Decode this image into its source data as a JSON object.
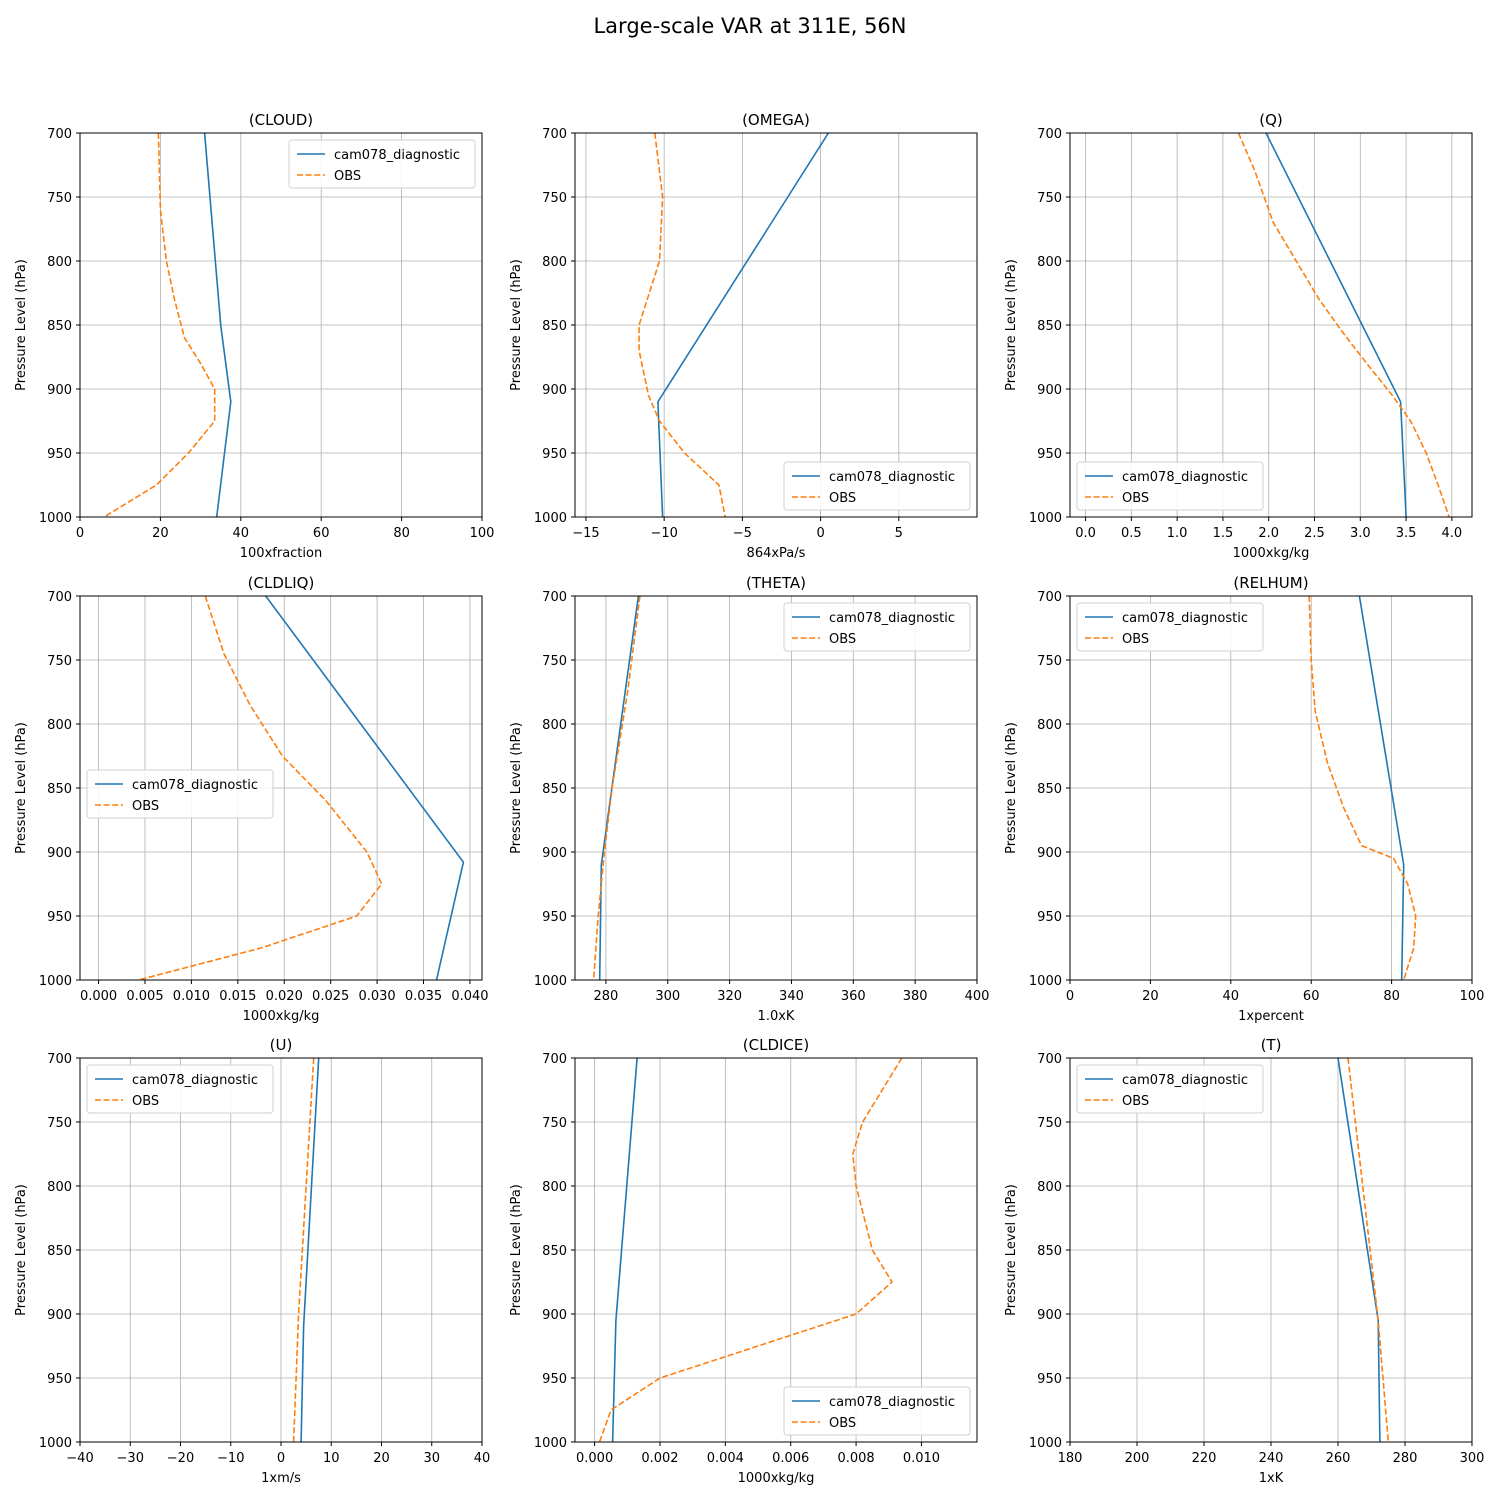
{
  "figure": {
    "title": "Large-scale VAR at 311E, 56N"
  },
  "chart_data": [
    {
      "type": "line",
      "title": "(CLOUD)",
      "xlabel": "100xfraction",
      "ylabel": "Pressure Level (hPa)",
      "xlim": [
        0,
        100
      ],
      "ylim": [
        1000,
        700
      ],
      "xticks": [
        0,
        20,
        40,
        60,
        80,
        100
      ],
      "xtick_labels": [
        "0",
        "20",
        "40",
        "60",
        "80",
        "100"
      ],
      "yticks": [
        700,
        750,
        800,
        850,
        900,
        950,
        1000
      ],
      "ytick_labels": [
        "700",
        "750",
        "800",
        "850",
        "900",
        "950",
        "1000"
      ],
      "grid": true,
      "legend_loc": "upper-right",
      "series": [
        {
          "name": "cam078_diagnostic",
          "color": "#1f77b4",
          "style": "solid",
          "points": [
            [
              31,
              700
            ],
            [
              35,
              850
            ],
            [
              37.5,
              910
            ],
            [
              34,
              1000
            ]
          ]
        },
        {
          "name": "OBS",
          "color": "#ff7f0e",
          "style": "dashed",
          "points": [
            [
              19.5,
              700
            ],
            [
              20,
              760
            ],
            [
              21.5,
              800
            ],
            [
              23.5,
              830
            ],
            [
              26,
              860
            ],
            [
              30,
              880
            ],
            [
              33.5,
              900
            ],
            [
              33.5,
              925
            ],
            [
              27,
              950
            ],
            [
              19,
              975
            ],
            [
              6,
              1000
            ]
          ]
        }
      ]
    },
    {
      "type": "line",
      "title": "(OMEGA)",
      "xlabel": "864xPa/s",
      "ylabel": "Pressure Level (hPa)",
      "xlim": [
        -15.7,
        10
      ],
      "ylim": [
        1000,
        700
      ],
      "xticks": [
        -15,
        -10,
        -5,
        0,
        5
      ],
      "xtick_labels": [
        "−15",
        "−10",
        "−5",
        "0",
        "5"
      ],
      "yticks": [
        700,
        750,
        800,
        850,
        900,
        950,
        1000
      ],
      "ytick_labels": [
        "700",
        "750",
        "800",
        "850",
        "900",
        "950",
        "1000"
      ],
      "grid": true,
      "legend_loc": "lower-right",
      "series": [
        {
          "name": "cam078_diagnostic",
          "color": "#1f77b4",
          "style": "solid",
          "points": [
            [
              0.5,
              700
            ],
            [
              -10.4,
              910
            ],
            [
              -10.1,
              1000
            ]
          ]
        },
        {
          "name": "OBS",
          "color": "#ff7f0e",
          "style": "dashed",
          "points": [
            [
              -10.6,
              700
            ],
            [
              -10.1,
              750
            ],
            [
              -10.3,
              800
            ],
            [
              -11.6,
              850
            ],
            [
              -11.6,
              870
            ],
            [
              -11.0,
              905
            ],
            [
              -10.3,
              925
            ],
            [
              -8.7,
              950
            ],
            [
              -6.5,
              975
            ],
            [
              -6.1,
              1000
            ]
          ]
        }
      ]
    },
    {
      "type": "line",
      "title": "(Q)",
      "xlabel": "1000xkg/kg",
      "ylabel": "Pressure Level (hPa)",
      "xlim": [
        -0.17,
        4.22
      ],
      "ylim": [
        1000,
        700
      ],
      "xticks": [
        0,
        0.5,
        1,
        1.5,
        2,
        2.5,
        3,
        3.5,
        4
      ],
      "xtick_labels": [
        "0.0",
        "0.5",
        "1.0",
        "1.5",
        "2.0",
        "2.5",
        "3.0",
        "3.5",
        "4.0"
      ],
      "yticks": [
        700,
        750,
        800,
        850,
        900,
        950,
        1000
      ],
      "ytick_labels": [
        "700",
        "750",
        "800",
        "850",
        "900",
        "950",
        "1000"
      ],
      "grid": true,
      "legend_loc": "lower-left",
      "series": [
        {
          "name": "cam078_diagnostic",
          "color": "#1f77b4",
          "style": "solid",
          "points": [
            [
              1.97,
              700
            ],
            [
              3.44,
              910
            ],
            [
              3.5,
              1000
            ]
          ]
        },
        {
          "name": "OBS",
          "color": "#ff7f0e",
          "style": "dashed",
          "points": [
            [
              1.67,
              700
            ],
            [
              1.85,
              730
            ],
            [
              2.05,
              770
            ],
            [
              2.3,
              800
            ],
            [
              2.55,
              830
            ],
            [
              2.8,
              855
            ],
            [
              3.07,
              880
            ],
            [
              3.35,
              905
            ],
            [
              3.55,
              925
            ],
            [
              3.72,
              950
            ],
            [
              3.85,
              975
            ],
            [
              3.97,
              1000
            ]
          ]
        }
      ]
    },
    {
      "type": "line",
      "title": "(CLDLIQ)",
      "xlabel": "1000xkg/kg",
      "ylabel": "Pressure Level (hPa)",
      "xlim": [
        -0.002,
        0.0413
      ],
      "ylim": [
        1000,
        700
      ],
      "xticks": [
        0,
        0.005,
        0.01,
        0.015,
        0.02,
        0.025,
        0.03,
        0.035,
        0.04
      ],
      "xtick_labels": [
        "0.000",
        "0.005",
        "0.010",
        "0.015",
        "0.020",
        "0.025",
        "0.030",
        "0.035",
        "0.040"
      ],
      "yticks": [
        700,
        750,
        800,
        850,
        900,
        950,
        1000
      ],
      "ytick_labels": [
        "700",
        "750",
        "800",
        "850",
        "900",
        "950",
        "1000"
      ],
      "grid": true,
      "legend_loc": "center-left",
      "series": [
        {
          "name": "cam078_diagnostic",
          "color": "#1f77b4",
          "style": "solid",
          "points": [
            [
              0.018,
              700
            ],
            [
              0.0393,
              908
            ],
            [
              0.0364,
              1000
            ]
          ]
        },
        {
          "name": "OBS",
          "color": "#ff7f0e",
          "style": "dashed",
          "points": [
            [
              0.0115,
              700
            ],
            [
              0.0135,
              745
            ],
            [
              0.0163,
              785
            ],
            [
              0.0198,
              825
            ],
            [
              0.0245,
              860
            ],
            [
              0.0289,
              900
            ],
            [
              0.0305,
              925
            ],
            [
              0.0278,
              950
            ],
            [
              0.0175,
              975
            ],
            [
              0.0043,
              1000
            ]
          ]
        }
      ]
    },
    {
      "type": "line",
      "title": "(THETA)",
      "xlabel": "1.0xK",
      "ylabel": "Pressure Level (hPa)",
      "xlim": [
        270,
        400
      ],
      "ylim": [
        1000,
        700
      ],
      "xticks": [
        280,
        300,
        320,
        340,
        360,
        380,
        400
      ],
      "xtick_labels": [
        "280",
        "300",
        "320",
        "340",
        "360",
        "380",
        "400"
      ],
      "yticks": [
        700,
        750,
        800,
        850,
        900,
        950,
        1000
      ],
      "ytick_labels": [
        "700",
        "750",
        "800",
        "850",
        "900",
        "950",
        "1000"
      ],
      "grid": true,
      "legend_loc": "upper-right",
      "series": [
        {
          "name": "cam078_diagnostic",
          "color": "#1f77b4",
          "style": "solid",
          "points": [
            [
              290.5,
              700
            ],
            [
              278.5,
              910
            ],
            [
              278,
              1000
            ]
          ]
        },
        {
          "name": "OBS",
          "color": "#ff7f0e",
          "style": "dashed",
          "points": [
            [
              291,
              700
            ],
            [
              287,
              775
            ],
            [
              282,
              850
            ],
            [
              279.5,
              900
            ],
            [
              277.5,
              950
            ],
            [
              276,
              1000
            ]
          ]
        }
      ]
    },
    {
      "type": "line",
      "title": "(RELHUM)",
      "xlabel": "1xpercent",
      "ylabel": "Pressure Level (hPa)",
      "xlim": [
        0,
        100
      ],
      "ylim": [
        1000,
        700
      ],
      "xticks": [
        0,
        20,
        40,
        60,
        80,
        100
      ],
      "xtick_labels": [
        "0",
        "20",
        "40",
        "60",
        "80",
        "100"
      ],
      "yticks": [
        700,
        750,
        800,
        850,
        900,
        950,
        1000
      ],
      "ytick_labels": [
        "700",
        "750",
        "800",
        "850",
        "900",
        "950",
        "1000"
      ],
      "grid": true,
      "legend_loc": "upper-left",
      "series": [
        {
          "name": "cam078_diagnostic",
          "color": "#1f77b4",
          "style": "solid",
          "points": [
            [
              72,
              700
            ],
            [
              83,
              910
            ],
            [
              82.5,
              1000
            ]
          ]
        },
        {
          "name": "OBS",
          "color": "#ff7f0e",
          "style": "dashed",
          "points": [
            [
              59.5,
              700
            ],
            [
              60,
              750
            ],
            [
              61,
              790
            ],
            [
              64,
              830
            ],
            [
              68,
              865
            ],
            [
              72.5,
              895
            ],
            [
              80.5,
              905
            ],
            [
              84,
              925
            ],
            [
              86,
              950
            ],
            [
              85.5,
              975
            ],
            [
              83,
              1000
            ]
          ]
        }
      ]
    },
    {
      "type": "line",
      "title": "(U)",
      "xlabel": "1xm/s",
      "ylabel": "Pressure Level (hPa)",
      "xlim": [
        -40,
        40
      ],
      "ylim": [
        1000,
        700
      ],
      "xticks": [
        -40,
        -30,
        -20,
        -10,
        0,
        10,
        20,
        30,
        40
      ],
      "xtick_labels": [
        "−40",
        "−30",
        "−20",
        "−10",
        "0",
        "10",
        "20",
        "30",
        "40"
      ],
      "yticks": [
        700,
        750,
        800,
        850,
        900,
        950,
        1000
      ],
      "ytick_labels": [
        "700",
        "750",
        "800",
        "850",
        "900",
        "950",
        "1000"
      ],
      "grid": true,
      "legend_loc": "upper-left",
      "series": [
        {
          "name": "cam078_diagnostic",
          "color": "#1f77b4",
          "style": "solid",
          "points": [
            [
              7.5,
              700
            ],
            [
              4.5,
              910
            ],
            [
              4,
              1000
            ]
          ]
        },
        {
          "name": "OBS",
          "color": "#ff7f0e",
          "style": "dashed",
          "points": [
            [
              6.5,
              700
            ],
            [
              3.5,
              900
            ],
            [
              2.5,
              1000
            ]
          ]
        }
      ]
    },
    {
      "type": "line",
      "title": "(CLDICE)",
      "xlabel": "1000xkg/kg",
      "ylabel": "Pressure Level (hPa)",
      "xlim": [
        -0.0006,
        0.0117
      ],
      "ylim": [
        1000,
        700
      ],
      "xticks": [
        0,
        0.002,
        0.004,
        0.006,
        0.008,
        0.01
      ],
      "xtick_labels": [
        "0.000",
        "0.002",
        "0.004",
        "0.006",
        "0.008",
        "0.010"
      ],
      "yticks": [
        700,
        750,
        800,
        850,
        900,
        950,
        1000
      ],
      "ytick_labels": [
        "700",
        "750",
        "800",
        "850",
        "900",
        "950",
        "1000"
      ],
      "grid": true,
      "legend_loc": "lower-right",
      "series": [
        {
          "name": "cam078_diagnostic",
          "color": "#1f77b4",
          "style": "solid",
          "points": [
            [
              0.0013,
              700
            ],
            [
              0.00065,
              905
            ],
            [
              0.00055,
              1000
            ]
          ]
        },
        {
          "name": "OBS",
          "color": "#ff7f0e",
          "style": "dashed",
          "points": [
            [
              0.0094,
              700
            ],
            [
              0.0082,
              750
            ],
            [
              0.0079,
              775
            ],
            [
              0.008,
              800
            ],
            [
              0.0085,
              850
            ],
            [
              0.0091,
              875
            ],
            [
              0.008,
              900
            ],
            [
              0.005,
              925
            ],
            [
              0.002,
              950
            ],
            [
              0.0005,
              975
            ],
            [
              0.00015,
              1000
            ]
          ]
        }
      ]
    },
    {
      "type": "line",
      "title": "(T)",
      "xlabel": "1xK",
      "ylabel": "Pressure Level (hPa)",
      "xlim": [
        180,
        300
      ],
      "ylim": [
        1000,
        700
      ],
      "xticks": [
        180,
        200,
        220,
        240,
        260,
        280,
        300
      ],
      "xtick_labels": [
        "180",
        "200",
        "220",
        "240",
        "260",
        "280",
        "300"
      ],
      "yticks": [
        700,
        750,
        800,
        850,
        900,
        950,
        1000
      ],
      "ytick_labels": [
        "700",
        "750",
        "800",
        "850",
        "900",
        "950",
        "1000"
      ],
      "grid": true,
      "legend_loc": "upper-left",
      "series": [
        {
          "name": "cam078_diagnostic",
          "color": "#1f77b4",
          "style": "solid",
          "points": [
            [
              260,
              700
            ],
            [
              272,
              905
            ],
            [
              272.5,
              1000
            ]
          ]
        },
        {
          "name": "OBS",
          "color": "#ff7f0e",
          "style": "dashed",
          "points": [
            [
              263,
              700
            ],
            [
              272,
              905
            ],
            [
              275,
              1000
            ]
          ]
        }
      ]
    }
  ]
}
